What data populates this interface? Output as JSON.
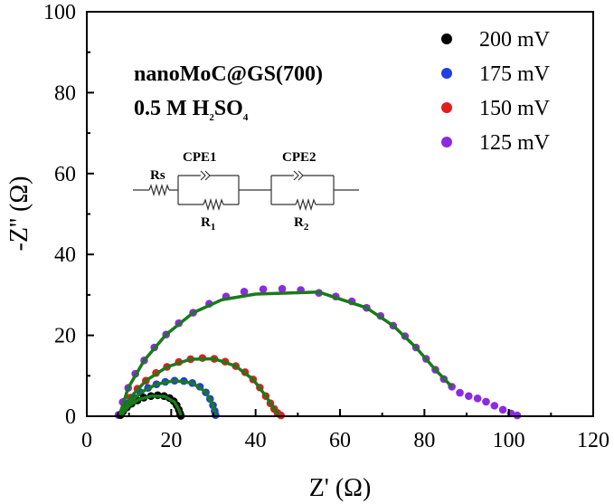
{
  "chart_data": {
    "type": "scatter",
    "xlabel": "Z' (Ω)",
    "ylabel": "-Z'' (Ω)",
    "xlim": [
      0,
      120
    ],
    "ylim": [
      0,
      100
    ],
    "xticks": [
      "0",
      "20",
      "40",
      "60",
      "80",
      "100",
      "120"
    ],
    "yticks": [
      "0",
      "20",
      "40",
      "60",
      "80",
      "100"
    ],
    "legend_position": "top-right",
    "annotation": {
      "line1": "nanoMoC@GS(700)",
      "line2_prefix": "0.5 M H",
      "line2_sub1": "2",
      "line2_mid": "SO",
      "line2_sub2": "4"
    },
    "circuit": {
      "rs": "Rs",
      "cpe1": "CPE1",
      "r1_main": "R",
      "r1_sub": "1",
      "cpe2": "CPE2",
      "r2_main": "R",
      "r2_sub": "2"
    },
    "fit_color": "#1a7a1a",
    "series": [
      {
        "name": "200 mV",
        "color": "#000000",
        "points": [
          [
            8,
            0.3
          ],
          [
            8.6,
            1.2
          ],
          [
            9.5,
            2.2
          ],
          [
            10.6,
            3.1
          ],
          [
            12,
            3.9
          ],
          [
            13.5,
            4.6
          ],
          [
            15.2,
            5.0
          ],
          [
            16.8,
            5.2
          ],
          [
            18.3,
            5.0
          ],
          [
            19.6,
            4.5
          ],
          [
            20.6,
            3.7
          ],
          [
            21.3,
            2.7
          ],
          [
            21.8,
            1.6
          ],
          [
            22.1,
            0.7
          ],
          [
            22.3,
            0.1
          ]
        ]
      },
      {
        "name": "175 mV",
        "color": "#1f3fe0",
        "points": [
          [
            8,
            0.4
          ],
          [
            8.8,
            1.8
          ],
          [
            9.8,
            3.2
          ],
          [
            11.1,
            4.6
          ],
          [
            12.7,
            5.9
          ],
          [
            14.5,
            7.0
          ],
          [
            16.5,
            7.9
          ],
          [
            18.6,
            8.5
          ],
          [
            20.8,
            8.8
          ],
          [
            23.0,
            8.7
          ],
          [
            25.0,
            8.2
          ],
          [
            26.8,
            7.3
          ],
          [
            28.2,
            5.9
          ],
          [
            29.2,
            4.3
          ],
          [
            29.9,
            2.7
          ],
          [
            30.3,
            1.3
          ],
          [
            30.5,
            0.3
          ]
        ]
      },
      {
        "name": "150 mV",
        "color": "#e01e1e",
        "points": [
          [
            8,
            0.5
          ],
          [
            9.0,
            2.5
          ],
          [
            10.3,
            4.6
          ],
          [
            12.0,
            6.8
          ],
          [
            14.0,
            8.8
          ],
          [
            16.4,
            10.7
          ],
          [
            19.0,
            12.2
          ],
          [
            21.8,
            13.4
          ],
          [
            24.6,
            14.1
          ],
          [
            27.4,
            14.4
          ],
          [
            30.2,
            14.2
          ],
          [
            32.8,
            13.5
          ],
          [
            35.3,
            12.4
          ],
          [
            37.5,
            10.9
          ],
          [
            39.4,
            9.1
          ],
          [
            41.0,
            7.1
          ],
          [
            42.4,
            5.0
          ],
          [
            43.5,
            3.2
          ],
          [
            44.4,
            1.8
          ],
          [
            45.2,
            0.8
          ],
          [
            46.0,
            0.2
          ]
        ]
      },
      {
        "name": "125 mV",
        "color": "#8a2be2",
        "points": [
          [
            7.5,
            0.3
          ],
          [
            8.5,
            3.5
          ],
          [
            9.8,
            7.0
          ],
          [
            11.5,
            10.5
          ],
          [
            13.6,
            13.8
          ],
          [
            16.0,
            17.0
          ],
          [
            18.8,
            20.2
          ],
          [
            21.8,
            23.0
          ],
          [
            25.2,
            25.6
          ],
          [
            29.0,
            27.8
          ],
          [
            33.0,
            29.6
          ],
          [
            37.3,
            30.8
          ],
          [
            41.8,
            31.4
          ],
          [
            46.3,
            31.5
          ],
          [
            50.7,
            31.2
          ],
          [
            55.0,
            30.5
          ],
          [
            59.0,
            29.6
          ],
          [
            62.8,
            28.4
          ],
          [
            66.3,
            26.8
          ],
          [
            69.6,
            24.8
          ],
          [
            72.6,
            22.4
          ],
          [
            75.4,
            19.8
          ],
          [
            78.0,
            17.0
          ],
          [
            80.4,
            14.2
          ],
          [
            82.6,
            11.5
          ],
          [
            84.6,
            9.2
          ],
          [
            86.5,
            7.3
          ],
          [
            88.4,
            5.8
          ],
          [
            90.5,
            5.0
          ],
          [
            92.6,
            4.4
          ],
          [
            94.6,
            3.6
          ],
          [
            96.6,
            2.6
          ],
          [
            98.6,
            1.6
          ],
          [
            100.5,
            0.7
          ],
          [
            102.0,
            0.2
          ]
        ]
      }
    ],
    "fits": [
      {
        "series": "200 mV",
        "points": [
          [
            8.2,
            0.3
          ],
          [
            10,
            2.6
          ],
          [
            12.5,
            4.2
          ],
          [
            15.5,
            5.0
          ],
          [
            18.5,
            4.9
          ],
          [
            20.8,
            3.5
          ],
          [
            21.9,
            1.4
          ],
          [
            22.3,
            0.2
          ]
        ]
      },
      {
        "series": "175 mV",
        "points": [
          [
            8.2,
            0.4
          ],
          [
            10,
            3.2
          ],
          [
            13,
            6.0
          ],
          [
            16.5,
            7.9
          ],
          [
            20.8,
            8.8
          ],
          [
            25,
            8.2
          ],
          [
            28.2,
            6.0
          ],
          [
            29.8,
            2.8
          ],
          [
            30.5,
            0.3
          ]
        ]
      },
      {
        "series": "150 mV",
        "points": [
          [
            8.2,
            0.5
          ],
          [
            10.3,
            4.6
          ],
          [
            14.0,
            8.8
          ],
          [
            19.0,
            12.2
          ],
          [
            24.6,
            14.1
          ],
          [
            30.2,
            14.2
          ],
          [
            35.3,
            12.4
          ],
          [
            39.4,
            9.1
          ],
          [
            42.4,
            5.0
          ],
          [
            44.4,
            1.8
          ],
          [
            45.5,
            0.3
          ]
        ]
      },
      {
        "series": "125 mV",
        "points": [
          [
            7.8,
            0.3
          ],
          [
            9.8,
            7.0
          ],
          [
            13.6,
            13.8
          ],
          [
            18.8,
            20.2
          ],
          [
            25.2,
            25.6
          ],
          [
            32,
            28.8
          ],
          [
            40,
            30.2
          ],
          [
            55,
            30.7
          ],
          [
            66.3,
            26.8
          ],
          [
            72.6,
            22.4
          ],
          [
            78.0,
            17.0
          ],
          [
            82.6,
            11.5
          ],
          [
            86.5,
            7.3
          ]
        ]
      }
    ]
  }
}
